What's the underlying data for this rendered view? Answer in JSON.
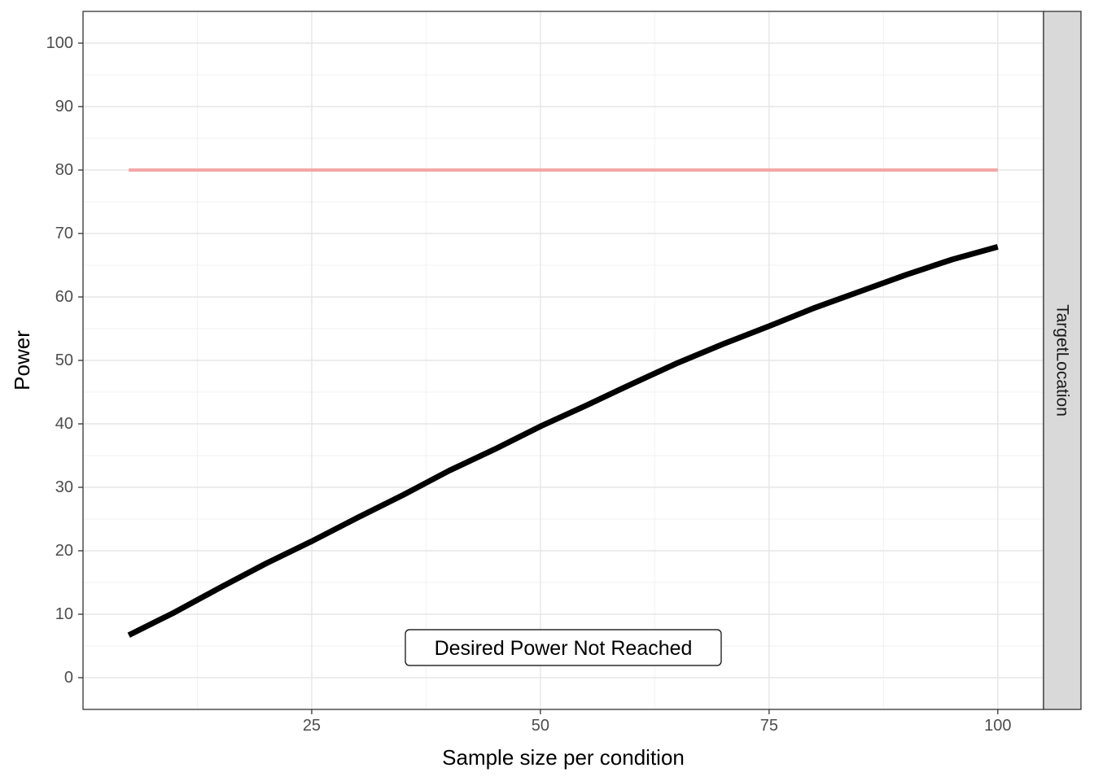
{
  "chart_data": {
    "type": "line",
    "xlabel": "Sample size per condition",
    "ylabel": "Power",
    "xlim": [
      0,
      105
    ],
    "ylim": [
      -5,
      105
    ],
    "x_ticks": [
      25,
      50,
      75,
      100
    ],
    "x_tick_labels": [
      "25",
      "50",
      "75",
      "100"
    ],
    "y_ticks": [
      0,
      10,
      20,
      30,
      40,
      50,
      60,
      70,
      80,
      90,
      100
    ],
    "y_tick_labels": [
      "0",
      "10",
      "20",
      "30",
      "40",
      "50",
      "60",
      "70",
      "80",
      "90",
      "100"
    ],
    "grid": true,
    "facet_label": "TargetLocation",
    "annotation": "Desired Power Not Reached",
    "reference_line": {
      "y": 80,
      "x_range": [
        5,
        100
      ],
      "color": "#f4a6a6"
    },
    "series": [
      {
        "color": "#000000",
        "x": [
          5,
          10,
          15,
          20,
          25,
          30,
          35,
          40,
          45,
          50,
          55,
          60,
          65,
          70,
          75,
          80,
          85,
          90,
          95,
          100
        ],
        "y": [
          6.7,
          10.3,
          14.2,
          18.0,
          21.5,
          25.2,
          28.8,
          32.6,
          36.0,
          39.6,
          42.9,
          46.3,
          49.6,
          52.6,
          55.4,
          58.3,
          60.9,
          63.5,
          65.9,
          67.9
        ]
      }
    ]
  }
}
